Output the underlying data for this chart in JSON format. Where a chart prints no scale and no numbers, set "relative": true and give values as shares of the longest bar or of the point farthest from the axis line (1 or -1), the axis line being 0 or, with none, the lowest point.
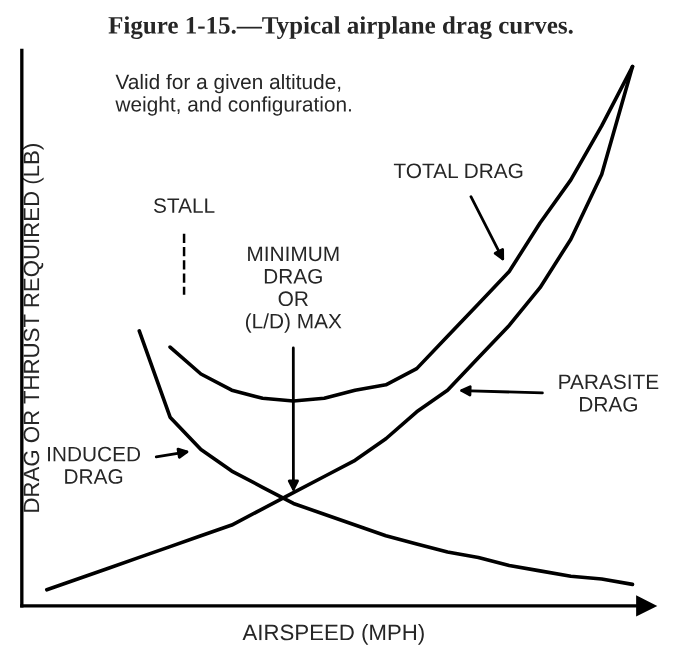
{
  "chart_data": {
    "type": "line",
    "relative": true,
    "title": "Figure 1-15.—Typical airplane drag curves.",
    "xlabel": "AIRSPEED (MPH)",
    "ylabel": "DRAG OR THRUST REQUIRED (LB)",
    "marker": "none",
    "line_style": "solid",
    "categories": [
      null,
      null,
      null,
      null,
      null,
      null,
      null,
      null,
      null,
      null,
      null,
      null,
      null,
      null,
      null,
      null,
      null,
      null,
      null,
      null
    ],
    "series": [
      {
        "color": "#000000",
        "values": [
          null,
          null,
          null,
          0.51,
          0.35,
          0.29,
          0.25,
          0.22,
          0.19,
          0.17,
          0.15,
          0.13,
          0.115,
          0.1,
          0.09,
          0.075,
          0.065,
          0.055,
          0.05,
          0.04
        ]
      },
      {
        "color": "#000000",
        "values": [
          0.03,
          0.05,
          0.07,
          0.09,
          0.11,
          0.13,
          0.15,
          0.18,
          0.21,
          0.24,
          0.27,
          0.31,
          0.36,
          0.4,
          0.46,
          0.52,
          0.59,
          0.68,
          0.8,
          1.0
        ]
      },
      {
        "color": "#000000",
        "values": [
          null,
          null,
          null,
          null,
          0.48,
          0.43,
          0.4,
          0.385,
          0.38,
          0.385,
          0.4,
          0.41,
          0.44,
          0.5,
          0.56,
          0.62,
          0.71,
          0.79,
          0.89,
          1.0
        ]
      }
    ],
    "annotations": [
      "Valid for a given altitude,\nweight, and configuration.",
      "STALL",
      "MINIMUM\nDRAG\nOR\n(L/D) MAX",
      "TOTAL DRAG",
      "PARASITE\nDRAG",
      "INDUCED\nDRAG"
    ]
  }
}
